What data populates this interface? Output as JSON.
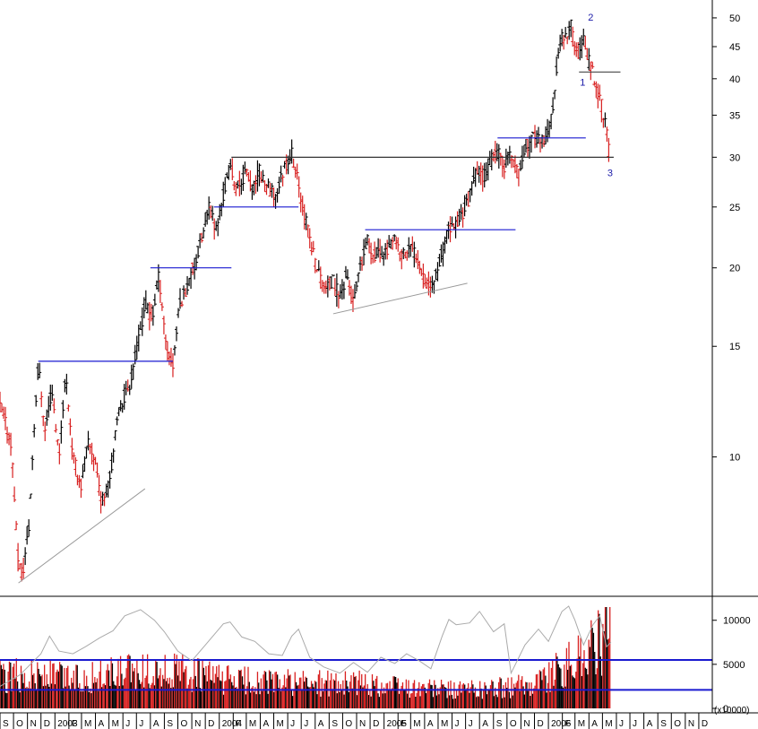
{
  "chart_data": [
    {
      "type": "ohlc",
      "scale": "log",
      "ylim": [
        6.0,
        52.0
      ],
      "yticks": [
        10,
        15,
        20,
        25,
        30,
        35,
        40,
        45,
        50
      ],
      "ytick_labels": [
        "10",
        "15",
        "20",
        "25",
        "30",
        "35",
        "40",
        "45",
        "50"
      ],
      "x_start": "2002-09-01",
      "x_end": "2006-12-31",
      "month_labels": [
        "S",
        "O",
        "N",
        "D",
        "2003",
        "F",
        "M",
        "A",
        "M",
        "J",
        "J",
        "A",
        "S",
        "O",
        "N",
        "D",
        "2004",
        "F",
        "M",
        "A",
        "M",
        "J",
        "J",
        "A",
        "S",
        "O",
        "N",
        "D",
        "2005",
        "F",
        "M",
        "A",
        "M",
        "J",
        "J",
        "A",
        "S",
        "O",
        "N",
        "D",
        "2006",
        "F",
        "M",
        "A",
        "M",
        "J",
        "J",
        "A",
        "S",
        "O",
        "N",
        "D"
      ],
      "path": [
        [
          "2002-09-01",
          12.0
        ],
        [
          "2002-09-25",
          10.6
        ],
        [
          "2002-10-10",
          7.0
        ],
        [
          "2002-10-20",
          6.4
        ],
        [
          "2002-11-05",
          7.8
        ],
        [
          "2002-11-25",
          14.0
        ],
        [
          "2002-12-10",
          11.0
        ],
        [
          "2002-12-25",
          12.8
        ],
        [
          "2003-01-10",
          10.0
        ],
        [
          "2003-01-25",
          13.5
        ],
        [
          "2003-02-10",
          10.0
        ],
        [
          "2003-02-28",
          9.0
        ],
        [
          "2003-03-15",
          10.5
        ],
        [
          "2003-03-30",
          10.0
        ],
        [
          "2003-04-15",
          8.4
        ],
        [
          "2003-05-05",
          9.5
        ],
        [
          "2003-05-25",
          12.0
        ],
        [
          "2003-06-15",
          13.0
        ],
        [
          "2003-07-05",
          15.2
        ],
        [
          "2003-07-20",
          17.5
        ],
        [
          "2003-08-05",
          16.5
        ],
        [
          "2003-08-20",
          19.5
        ],
        [
          "2003-09-05",
          15.0
        ],
        [
          "2003-09-20",
          14.0
        ],
        [
          "2003-10-05",
          17.5
        ],
        [
          "2003-10-25",
          19.0
        ],
        [
          "2003-11-10",
          20.5
        ],
        [
          "2003-11-25",
          22.5
        ],
        [
          "2003-12-10",
          25.0
        ],
        [
          "2003-12-25",
          23.0
        ],
        [
          "2004-01-10",
          26.0
        ],
        [
          "2004-01-25",
          29.0
        ],
        [
          "2004-02-10",
          26.5
        ],
        [
          "2004-02-28",
          28.5
        ],
        [
          "2004-03-15",
          26.5
        ],
        [
          "2004-03-30",
          28.5
        ],
        [
          "2004-04-15",
          27.0
        ],
        [
          "2004-05-05",
          26.0
        ],
        [
          "2004-05-25",
          29.0
        ],
        [
          "2004-06-10",
          30.5
        ],
        [
          "2004-06-25",
          27.0
        ],
        [
          "2004-07-10",
          24.0
        ],
        [
          "2004-07-25",
          21.5
        ],
        [
          "2004-08-10",
          19.5
        ],
        [
          "2004-08-25",
          18.5
        ],
        [
          "2004-09-10",
          19.0
        ],
        [
          "2004-09-25",
          18.0
        ],
        [
          "2004-10-10",
          19.5
        ],
        [
          "2004-10-25",
          17.5
        ],
        [
          "2004-11-10",
          20.0
        ],
        [
          "2004-11-25",
          22.0
        ],
        [
          "2004-12-10",
          21.0
        ],
        [
          "2004-12-25",
          21.0
        ],
        [
          "2005-01-10",
          21.5
        ],
        [
          "2005-01-25",
          22.0
        ],
        [
          "2005-02-10",
          21.0
        ],
        [
          "2005-02-28",
          21.5
        ],
        [
          "2005-03-15",
          21.0
        ],
        [
          "2005-03-30",
          19.5
        ],
        [
          "2005-04-15",
          18.5
        ],
        [
          "2005-05-05",
          20.5
        ],
        [
          "2005-05-25",
          23.0
        ],
        [
          "2005-06-10",
          23.5
        ],
        [
          "2005-06-25",
          24.5
        ],
        [
          "2005-07-10",
          26.0
        ],
        [
          "2005-07-25",
          28.5
        ],
        [
          "2005-08-10",
          28.0
        ],
        [
          "2005-08-25",
          29.5
        ],
        [
          "2005-09-10",
          30.5
        ],
        [
          "2005-09-25",
          29.0
        ],
        [
          "2005-10-10",
          30.5
        ],
        [
          "2005-10-25",
          28.0
        ],
        [
          "2005-11-10",
          31.0
        ],
        [
          "2005-11-25",
          32.0
        ],
        [
          "2005-12-10",
          32.5
        ],
        [
          "2005-12-25",
          31.5
        ],
        [
          "2006-01-10",
          35.0
        ],
        [
          "2006-01-20",
          42.0
        ],
        [
          "2006-01-31",
          47.0
        ],
        [
          "2006-02-10",
          46.0
        ],
        [
          "2006-02-20",
          48.5
        ],
        [
          "2006-02-28",
          45.0
        ],
        [
          "2006-03-10",
          44.0
        ],
        [
          "2006-03-20",
          46.0
        ],
        [
          "2006-04-01",
          42.5
        ],
        [
          "2006-04-10",
          41.0
        ],
        [
          "2006-04-20",
          38.0
        ],
        [
          "2006-05-01",
          36.0
        ],
        [
          "2006-05-10",
          33.0
        ],
        [
          "2006-05-18",
          29.5
        ]
      ],
      "hlines": [
        {
          "y": 14.2,
          "x0": "2002-11-25",
          "x1": "2003-09-20",
          "color": "#1a1ad0"
        },
        {
          "y": 20.0,
          "x0": "2003-08-01",
          "x1": "2004-01-28",
          "color": "#1a1ad0"
        },
        {
          "y": 25.0,
          "x0": "2003-12-20",
          "x1": "2004-06-25",
          "color": "#1a1ad0"
        },
        {
          "y": 30.0,
          "x0": "2004-01-28",
          "x1": "2006-05-26",
          "color": "#333333"
        },
        {
          "y": 23.0,
          "x0": "2004-11-20",
          "x1": "2005-10-20",
          "color": "#1a1ad0"
        },
        {
          "y": 32.2,
          "x0": "2005-09-10",
          "x1": "2006-03-25",
          "color": "#1a1ad0"
        },
        {
          "y": 41.0,
          "x0": "2006-03-10",
          "x1": "2006-06-10",
          "color": "#444444"
        }
      ],
      "trendlines": [
        {
          "x0": "2002-10-12",
          "y0": 6.3,
          "x1": "2003-07-20",
          "y1": 8.9,
          "color": "#9a9a9a"
        },
        {
          "x0": "2004-09-10",
          "y0": 16.9,
          "x1": "2005-07-05",
          "y1": 18.9,
          "color": "#9a9a9a"
        }
      ],
      "annotations": [
        {
          "label": "1",
          "x": "2006-03-18",
          "y": 39.0
        },
        {
          "label": "2",
          "x": "2006-04-05",
          "y": 49.5
        },
        {
          "label": "3",
          "x": "2006-05-18",
          "y": 28.0
        }
      ]
    },
    {
      "type": "bar",
      "name": "volume",
      "unit_label": "(x10000)",
      "ylim": [
        0,
        11500
      ],
      "yticks": [
        0,
        5000,
        10000
      ],
      "ytick_labels": [
        "0",
        "5000",
        "10000"
      ],
      "levels": [
        {
          "y": 5500,
          "color": "#1a1ad0"
        },
        {
          "y": 2100,
          "color": "#1a1ad0"
        }
      ],
      "profile": [
        [
          "2002-09-01",
          3800
        ],
        [
          "2002-12-01",
          3900
        ],
        [
          "2003-03-01",
          3500
        ],
        [
          "2003-07-01",
          4200
        ],
        [
          "2003-10-01",
          4200
        ],
        [
          "2004-01-01",
          3400
        ],
        [
          "2004-05-01",
          3000
        ],
        [
          "2004-08-01",
          2900
        ],
        [
          "2004-11-01",
          2900
        ],
        [
          "2005-03-01",
          2400
        ],
        [
          "2005-06-01",
          2100
        ],
        [
          "2005-09-01",
          2300
        ],
        [
          "2005-11-01",
          2600
        ],
        [
          "2006-01-01",
          3800
        ],
        [
          "2006-03-01",
          5600
        ],
        [
          "2006-05-01",
          8000
        ],
        [
          "2006-05-20",
          11500
        ]
      ],
      "line": [
        [
          "2002-09-01",
          2500
        ],
        [
          "2002-10-15",
          3800
        ],
        [
          "2002-12-01",
          6200
        ],
        [
          "2002-12-20",
          8200
        ],
        [
          "2003-01-10",
          6500
        ],
        [
          "2003-02-10",
          6200
        ],
        [
          "2003-03-10",
          7000
        ],
        [
          "2003-04-10",
          8000
        ],
        [
          "2003-05-10",
          8800
        ],
        [
          "2003-06-05",
          10500
        ],
        [
          "2003-07-10",
          11200
        ],
        [
          "2003-08-10",
          10000
        ],
        [
          "2003-09-01",
          8700
        ],
        [
          "2003-10-01",
          6500
        ],
        [
          "2003-11-01",
          5400
        ],
        [
          "2003-12-01",
          7200
        ],
        [
          "2004-01-10",
          9600
        ],
        [
          "2004-01-25",
          9800
        ],
        [
          "2004-02-20",
          8100
        ],
        [
          "2004-03-20",
          7600
        ],
        [
          "2004-04-20",
          6200
        ],
        [
          "2004-05-20",
          6000
        ],
        [
          "2004-06-10",
          8200
        ],
        [
          "2004-06-25",
          9000
        ],
        [
          "2004-07-20",
          5800
        ],
        [
          "2004-08-20",
          4700
        ],
        [
          "2004-09-25",
          4000
        ],
        [
          "2004-10-25",
          5200
        ],
        [
          "2004-11-25",
          4100
        ],
        [
          "2004-12-25",
          5800
        ],
        [
          "2005-01-25",
          5100
        ],
        [
          "2005-02-20",
          6200
        ],
        [
          "2005-03-20",
          5400
        ],
        [
          "2005-04-15",
          4500
        ],
        [
          "2005-05-10",
          8200
        ],
        [
          "2005-05-25",
          10100
        ],
        [
          "2005-06-10",
          9500
        ],
        [
          "2005-07-10",
          9700
        ],
        [
          "2005-08-01",
          11000
        ],
        [
          "2005-09-01",
          8700
        ],
        [
          "2005-09-25",
          9600
        ],
        [
          "2005-10-10",
          4000
        ],
        [
          "2005-11-10",
          7200
        ],
        [
          "2005-12-10",
          9000
        ],
        [
          "2006-01-01",
          7600
        ],
        [
          "2006-01-31",
          11000
        ],
        [
          "2006-02-15",
          11600
        ],
        [
          "2006-03-01",
          10000
        ],
        [
          "2006-03-20",
          7200
        ],
        [
          "2006-04-10",
          9500
        ],
        [
          "2006-04-25",
          10500
        ],
        [
          "2006-05-10",
          7000
        ],
        [
          "2006-05-20",
          7500
        ]
      ]
    }
  ]
}
